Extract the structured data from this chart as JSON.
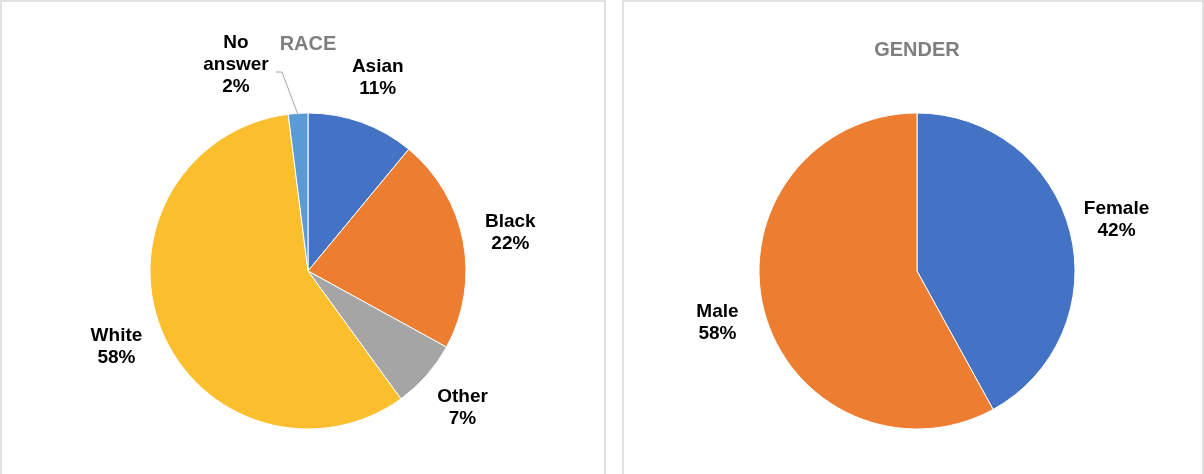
{
  "chart_data": [
    {
      "type": "pie",
      "title": "RACE",
      "categories": [
        "Asian",
        "Black",
        "Other",
        "White",
        "No answer"
      ],
      "values": [
        11,
        22,
        7,
        58,
        2
      ],
      "colors": [
        "#4472c4",
        "#ed7d31",
        "#a5a5a5",
        "#fbbe2d",
        "#5b9bd5"
      ],
      "value_labels": [
        "11%",
        "22%",
        "7%",
        "58%",
        "2%"
      ]
    },
    {
      "type": "pie",
      "title": "GENDER",
      "categories": [
        "Female",
        "Male"
      ],
      "values": [
        42,
        58
      ],
      "colors": [
        "#4472c4",
        "#ed7d31"
      ],
      "value_labels": [
        "42%",
        "58%"
      ]
    }
  ]
}
